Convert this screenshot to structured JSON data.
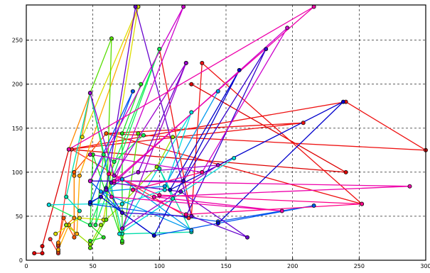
{
  "chart_data": {
    "type": "line",
    "title": "",
    "xlabel": "",
    "ylabel": "",
    "xlim": [
      0,
      300
    ],
    "ylim": [
      0,
      290
    ],
    "xticks": [
      0,
      50,
      100,
      150,
      200,
      250,
      300
    ],
    "yticks": [
      0,
      50,
      100,
      150,
      200,
      250
    ],
    "xtick_labels": [
      "0",
      "50",
      "100",
      "150",
      "200",
      "250",
      "300"
    ],
    "ytick_labels": [
      "0",
      "50",
      "100",
      "150",
      "200",
      "250"
    ],
    "grid": true,
    "legend": "none",
    "series": [
      {
        "color": "#dd0000",
        "points": [
          [
            6,
            8
          ],
          [
            12,
            8
          ],
          [
            12,
            16
          ],
          [
            32,
            126
          ],
          [
            240,
            100
          ],
          [
            124,
            200
          ]
        ]
      },
      {
        "color": "#ee1111",
        "points": [
          [
            60,
            144
          ],
          [
            208,
            156
          ],
          [
            32,
            126
          ],
          [
            240,
            180
          ],
          [
            300,
            125
          ],
          [
            60,
            144
          ],
          [
            252,
            64
          ],
          [
            132,
            224
          ],
          [
            124,
            50
          ],
          [
            100,
            240
          ]
        ]
      },
      {
        "color": "#ff3333",
        "points": [
          [
            18,
            24
          ],
          [
            24,
            8
          ],
          [
            24,
            16
          ],
          [
            34,
            126
          ],
          [
            122,
            48
          ]
        ]
      },
      {
        "color": "#ff5500",
        "points": [
          [
            24,
            10
          ],
          [
            24,
            18
          ],
          [
            28,
            48
          ],
          [
            36,
            26
          ],
          [
            36,
            100
          ],
          [
            60,
            144
          ]
        ]
      },
      {
        "color": "#ff8800",
        "points": [
          [
            24,
            20
          ],
          [
            30,
            40
          ],
          [
            36,
            48
          ],
          [
            36,
            96
          ],
          [
            48,
            190
          ],
          [
            32,
            126
          ]
        ]
      },
      {
        "color": "#ffaa00",
        "points": [
          [
            24,
            12
          ],
          [
            32,
            40
          ],
          [
            38,
            30
          ],
          [
            40,
            96
          ],
          [
            84,
            288
          ]
        ]
      },
      {
        "color": "#dddd00",
        "points": [
          [
            22,
            30
          ],
          [
            40,
            48
          ],
          [
            58,
            46
          ],
          [
            84,
            288
          ],
          [
            42,
            140
          ]
        ]
      },
      {
        "color": "#99dd00",
        "points": [
          [
            30,
            40
          ],
          [
            48,
            18
          ],
          [
            56,
            40
          ],
          [
            72,
            64
          ],
          [
            98,
            106
          ],
          [
            110,
            140
          ]
        ]
      },
      {
        "color": "#55dd00",
        "points": [
          [
            48,
            14
          ],
          [
            60,
            46
          ],
          [
            64,
            252
          ],
          [
            48,
            190
          ],
          [
            72,
            20
          ],
          [
            84,
            144
          ]
        ]
      },
      {
        "color": "#22dd22",
        "points": [
          [
            48,
            22
          ],
          [
            58,
            26
          ],
          [
            48,
            40
          ],
          [
            50,
            120
          ],
          [
            72,
            22
          ],
          [
            72,
            144
          ],
          [
            86,
            200
          ]
        ]
      },
      {
        "color": "#11ee55",
        "points": [
          [
            17,
            63
          ],
          [
            48,
            40
          ],
          [
            100,
            240
          ],
          [
            52,
            40
          ],
          [
            58,
            120
          ],
          [
            66,
            112
          ],
          [
            88,
            142
          ]
        ]
      },
      {
        "color": "#00ddaa",
        "points": [
          [
            40,
            56
          ],
          [
            30,
            72
          ],
          [
            48,
            190
          ],
          [
            72,
            30
          ],
          [
            124,
            32
          ],
          [
            100,
            104
          ],
          [
            110,
            70
          ]
        ]
      },
      {
        "color": "#00dddd",
        "points": [
          [
            17,
            63
          ],
          [
            48,
            64
          ],
          [
            72,
            64
          ],
          [
            104,
            80
          ],
          [
            124,
            168
          ],
          [
            70,
            30
          ],
          [
            156,
            116
          ]
        ]
      },
      {
        "color": "#0099ee",
        "points": [
          [
            48,
            64
          ],
          [
            72,
            92
          ],
          [
            124,
            34
          ],
          [
            56,
            78
          ],
          [
            104,
            84
          ],
          [
            144,
            192
          ]
        ]
      },
      {
        "color": "#0055ee",
        "points": [
          [
            48,
            64
          ],
          [
            80,
            192
          ],
          [
            48,
            90
          ],
          [
            72,
            54
          ],
          [
            96,
            28
          ],
          [
            144,
            42
          ],
          [
            216,
            62
          ],
          [
            144,
            44
          ],
          [
            48,
            64
          ]
        ]
      },
      {
        "color": "#0000cc",
        "points": [
          [
            48,
            66
          ],
          [
            56,
            72
          ],
          [
            72,
            54
          ],
          [
            96,
            28
          ],
          [
            160,
            216
          ],
          [
            108,
            80
          ],
          [
            238,
            180
          ],
          [
            144,
            42
          ]
        ]
      },
      {
        "color": "#3300cc",
        "points": [
          [
            56,
            72
          ],
          [
            60,
            82
          ],
          [
            72,
            54
          ],
          [
            120,
            50
          ],
          [
            180,
            240
          ],
          [
            118,
            90
          ],
          [
            48,
            90
          ]
        ]
      },
      {
        "color": "#6600cc",
        "points": [
          [
            60,
            80
          ],
          [
            82,
            288
          ],
          [
            124,
            50
          ],
          [
            166,
            26
          ],
          [
            116,
            78
          ],
          [
            64,
            88
          ],
          [
            84,
            100
          ],
          [
            120,
            224
          ]
        ]
      },
      {
        "color": "#9900cc",
        "points": [
          [
            48,
            190
          ],
          [
            66,
            96
          ],
          [
            120,
            224
          ],
          [
            72,
            36
          ],
          [
            144,
            108
          ],
          [
            84,
            100
          ]
        ]
      },
      {
        "color": "#cc00cc",
        "points": [
          [
            48,
            90
          ],
          [
            118,
            288
          ],
          [
            66,
            88
          ],
          [
            196,
            264
          ],
          [
            132,
            100
          ],
          [
            48,
            120
          ]
        ]
      },
      {
        "color": "#ee00aa",
        "points": [
          [
            32,
            126
          ],
          [
            216,
            288
          ],
          [
            66,
            90
          ],
          [
            288,
            84
          ],
          [
            96,
            72
          ],
          [
            192,
            56
          ],
          [
            64,
            72
          ]
        ]
      },
      {
        "color": "#ff0088",
        "points": [
          [
            62,
            98
          ],
          [
            100,
            74
          ],
          [
            252,
            64
          ],
          [
            120,
            52
          ],
          [
            80,
            80
          ],
          [
            132,
            100
          ]
        ]
      }
    ]
  }
}
